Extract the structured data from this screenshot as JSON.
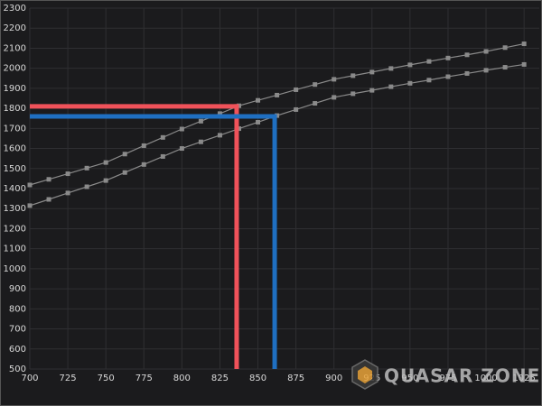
{
  "chart_data": {
    "type": "line",
    "x": [
      700,
      712.5,
      725,
      737.5,
      750,
      762.5,
      775,
      787.5,
      800,
      812.5,
      825,
      837.5,
      850,
      862.5,
      875,
      887.5,
      900,
      912.5,
      925,
      937.5,
      950,
      962.5,
      975,
      987.5,
      1000,
      1012.5,
      1025
    ],
    "series": [
      {
        "color": "#8a8a8a",
        "values": [
          1418,
          1446,
          1474,
          1502,
          1530,
          1572,
          1614,
          1655,
          1697,
          1736,
          1774,
          1813,
          1840,
          1866,
          1893,
          1919,
          1945,
          1963,
          1981,
          1999,
          2017,
          2034,
          2051,
          2067,
          2084,
          2103,
          2122
        ]
      },
      {
        "color": "#8a8a8a",
        "values": [
          1315,
          1346,
          1378,
          1409,
          1440,
          1480,
          1520,
          1560,
          1600,
          1633,
          1666,
          1699,
          1731,
          1764,
          1794,
          1825,
          1855,
          1873,
          1890,
          1908,
          1925,
          1941,
          1958,
          1974,
          1990,
          2005,
          2019
        ]
      }
    ],
    "reference_lines": [
      {
        "color": "#f0525a",
        "x": 836,
        "y": 1810
      },
      {
        "color": "#1f6fc1",
        "x": 861,
        "y": 1760
      }
    ],
    "xlim": [
      700,
      1035
    ],
    "ylim": [
      500,
      2300
    ],
    "xticks": [
      700,
      725,
      750,
      775,
      800,
      825,
      850,
      875,
      900,
      925,
      950,
      975,
      1000,
      1025
    ],
    "yticks": [
      500,
      600,
      700,
      800,
      900,
      1000,
      1100,
      1200,
      1300,
      1400,
      1500,
      1600,
      1700,
      1800,
      1900,
      2000,
      2100,
      2200,
      2300
    ],
    "grid": true,
    "watermark": "QUASAR ZONE"
  }
}
